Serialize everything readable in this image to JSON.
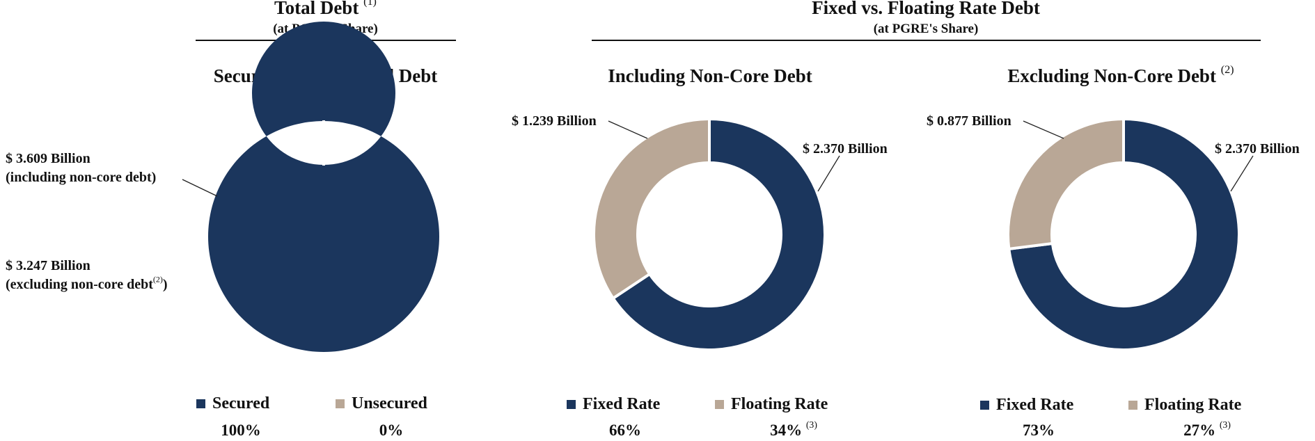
{
  "sections": {
    "total_debt": {
      "title": "Total Debt",
      "title_sup": "(1)",
      "subtitle": "(at PGRE's Share)"
    },
    "fixed_floating": {
      "title": "Fixed vs. Floating Rate Debt",
      "subtitle": "(at PGRE's Share)"
    }
  },
  "colors": {
    "primary": "#1b365d",
    "secondary": "#b9a796",
    "separator": "#ffffff"
  },
  "annotations": {
    "total_incl_value": "$ 3.609 Billion",
    "total_incl_note": "(including non-core debt)",
    "total_excl_value": "$ 3.247 Billion",
    "total_excl_note": "(excluding non-core debt",
    "total_excl_sup": "(2)",
    "total_excl_close": ")"
  },
  "chart_data": [
    {
      "type": "pie",
      "title": "Secured vs. Unsecured Debt",
      "title_sup": "",
      "categories": [
        "Secured",
        "Unsecured"
      ],
      "values": [
        100,
        0
      ],
      "labels": [],
      "percent_labels": [
        "100%",
        "0%"
      ],
      "percent_sups": [
        "",
        ""
      ]
    },
    {
      "type": "pie",
      "title": "Including Non-Core Debt",
      "title_sup": "",
      "categories": [
        "Fixed Rate",
        "Floating Rate"
      ],
      "values": [
        2.37,
        1.239
      ],
      "labels": [
        "$ 2.370 Billion",
        "$ 1.239 Billion"
      ],
      "percent_labels": [
        "66%",
        "34%"
      ],
      "percent_sups": [
        "",
        "(3)"
      ]
    },
    {
      "type": "pie",
      "title": "Excluding Non-Core Debt",
      "title_sup": "(2)",
      "categories": [
        "Fixed Rate",
        "Floating Rate"
      ],
      "values": [
        2.37,
        0.877
      ],
      "labels": [
        "$ 2.370 Billion",
        "$ 0.877 Billion"
      ],
      "percent_labels": [
        "73%",
        "27%"
      ],
      "percent_sups": [
        "",
        "(3)"
      ]
    }
  ]
}
